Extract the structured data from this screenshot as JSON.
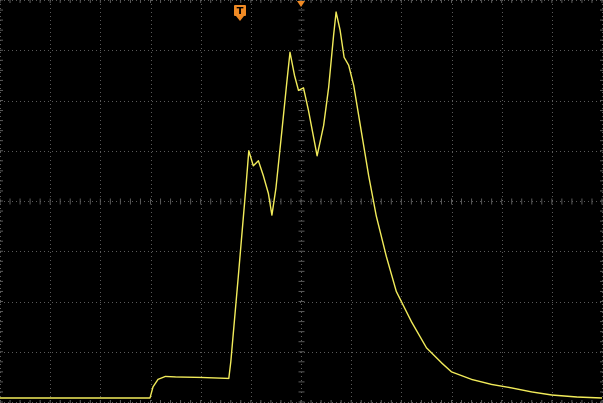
{
  "colors": {
    "background": "#000000",
    "grid": "#5a5a5a",
    "trace": "#f2ec5a",
    "marker": "#f08a24",
    "marker_text": "#000000"
  },
  "screen": {
    "divisions_x": 12,
    "divisions_y": 8,
    "minor_ticks_per_division": 5
  },
  "markers": {
    "trigger_label": "T",
    "trigger_position_icon": "trigger-position-icon"
  },
  "chart_data": {
    "type": "line",
    "title": "",
    "xlabel": "",
    "ylabel": "",
    "xlim": [
      0,
      12
    ],
    "ylim": [
      -4,
      4
    ],
    "grid": true,
    "series": [
      {
        "values_xy": [
          [
            0.0,
            -3.92
          ],
          [
            1.5,
            -3.92
          ],
          [
            2.99,
            -3.92
          ],
          [
            3.05,
            -3.7
          ],
          [
            3.15,
            -3.55
          ],
          [
            3.3,
            -3.49
          ],
          [
            3.5,
            -3.5
          ],
          [
            4.0,
            -3.51
          ],
          [
            4.56,
            -3.53
          ],
          [
            4.6,
            -3.2
          ],
          [
            4.75,
            -1.5
          ],
          [
            4.9,
            0.25
          ],
          [
            4.96,
            1.0
          ],
          [
            5.05,
            0.7
          ],
          [
            5.15,
            0.8
          ],
          [
            5.25,
            0.5
          ],
          [
            5.35,
            0.15
          ],
          [
            5.42,
            -0.28
          ],
          [
            5.5,
            0.25
          ],
          [
            5.62,
            1.4
          ],
          [
            5.72,
            2.4
          ],
          [
            5.78,
            2.96
          ],
          [
            5.87,
            2.5
          ],
          [
            5.95,
            2.2
          ],
          [
            6.05,
            2.25
          ],
          [
            6.15,
            1.8
          ],
          [
            6.32,
            0.9
          ],
          [
            6.45,
            1.5
          ],
          [
            6.55,
            2.25
          ],
          [
            6.65,
            3.3
          ],
          [
            6.7,
            3.76
          ],
          [
            6.78,
            3.4
          ],
          [
            6.86,
            2.86
          ],
          [
            6.95,
            2.7
          ],
          [
            7.05,
            2.3
          ],
          [
            7.2,
            1.4
          ],
          [
            7.35,
            0.5
          ],
          [
            7.5,
            -0.3
          ],
          [
            7.7,
            -1.1
          ],
          [
            7.9,
            -1.8
          ],
          [
            8.2,
            -2.4
          ],
          [
            8.5,
            -2.92
          ],
          [
            8.8,
            -3.22
          ],
          [
            9.0,
            -3.4
          ],
          [
            9.4,
            -3.55
          ],
          [
            9.8,
            -3.65
          ],
          [
            10.2,
            -3.72
          ],
          [
            10.6,
            -3.8
          ],
          [
            11.0,
            -3.86
          ],
          [
            11.5,
            -3.9
          ],
          [
            12.0,
            -3.92
          ]
        ]
      }
    ]
  }
}
